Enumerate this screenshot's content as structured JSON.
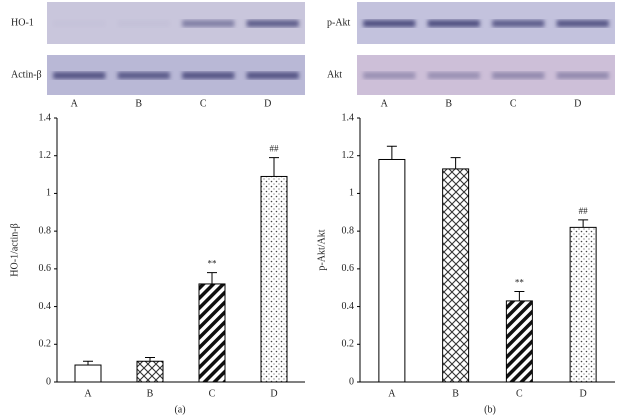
{
  "chart_data": [
    {
      "type": "bar",
      "ylabel": "HO-1/actin-β",
      "caption": "(a)",
      "blot": {
        "rows": [
          "HO-1",
          "Actin-β"
        ],
        "lanes": [
          "A",
          "B",
          "C",
          "D"
        ]
      },
      "categories": [
        "A",
        "B",
        "C",
        "D"
      ],
      "values": [
        0.09,
        0.11,
        0.52,
        1.09
      ],
      "errors": [
        0.02,
        0.02,
        0.06,
        0.1
      ],
      "annotations": [
        null,
        null,
        "**",
        "##"
      ],
      "ylim": [
        0,
        1.4
      ],
      "yticks": [
        0,
        0.2,
        0.4,
        0.6,
        0.8,
        1,
        1.2,
        1.4
      ]
    },
    {
      "type": "bar",
      "ylabel": "p-Akt/Akt",
      "caption": "(b)",
      "blot": {
        "rows": [
          "p-Akt",
          "Akt"
        ],
        "lanes": [
          "A",
          "B",
          "C",
          "D"
        ]
      },
      "categories": [
        "A",
        "B",
        "C",
        "D"
      ],
      "values": [
        1.18,
        1.13,
        0.43,
        0.82
      ],
      "errors": [
        0.07,
        0.06,
        0.05,
        0.04
      ],
      "annotations": [
        null,
        null,
        "**",
        "##"
      ],
      "ylim": [
        0,
        1.4
      ],
      "yticks": [
        0,
        0.2,
        0.4,
        0.6,
        0.8,
        1,
        1.2,
        1.4
      ]
    }
  ]
}
